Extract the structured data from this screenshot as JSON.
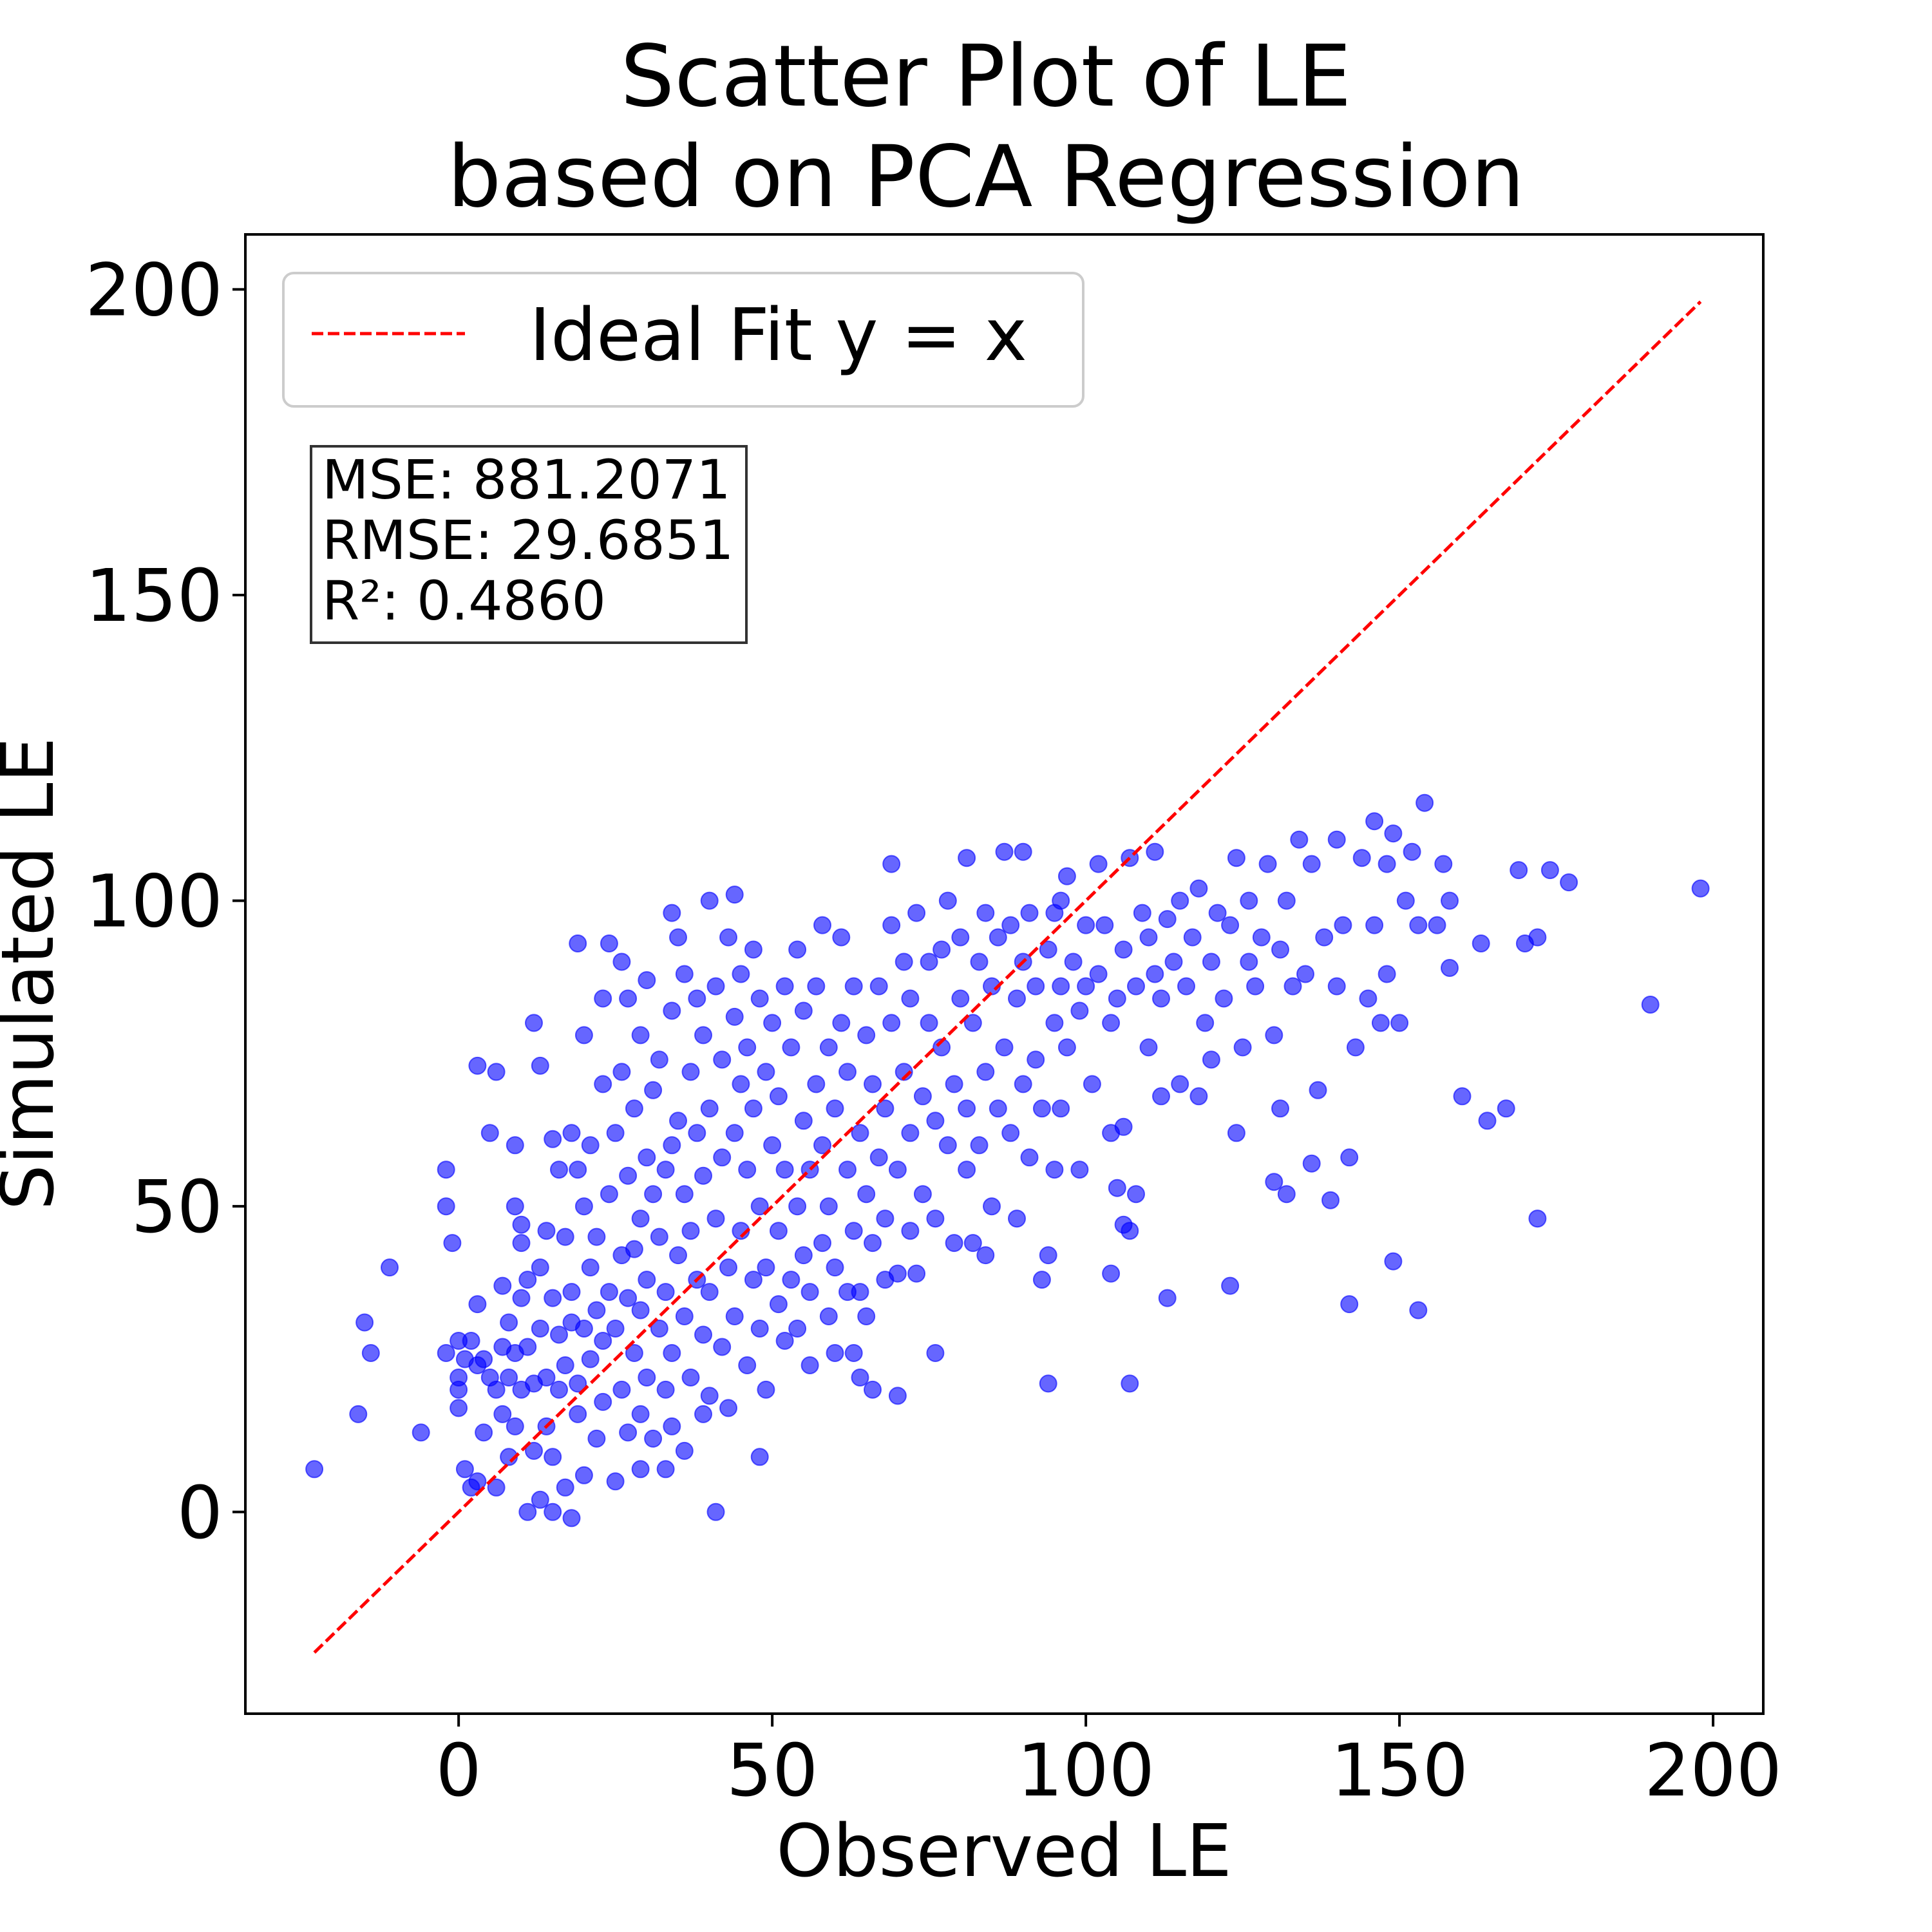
{
  "chart_data": {
    "type": "scatter",
    "title_lines": [
      "Scatter Plot of LE",
      "based on PCA Regression"
    ],
    "xlabel": "Observed LE",
    "ylabel": "Simulated LE",
    "xlim": [
      -34,
      208
    ],
    "ylim": [
      -33,
      209
    ],
    "xticks": [
      0,
      50,
      100,
      150,
      200
    ],
    "yticks": [
      0,
      50,
      100,
      150,
      200
    ],
    "xtick_labels": [
      "0",
      "50",
      "100",
      "150",
      "200"
    ],
    "ytick_labels": [
      "0",
      "50",
      "100",
      "150",
      "200"
    ],
    "grid": false,
    "legend": {
      "placement": "upper-left",
      "entries": [
        {
          "label": "Ideal Fit y = x",
          "style": "dashed",
          "color": "#ff0000"
        }
      ]
    },
    "ideal_line": {
      "x": [
        -23,
        198
      ],
      "y": [
        -23,
        198
      ],
      "color": "#ff0000"
    },
    "metrics_box": [
      "MSE: 881.2071",
      "RMSE: 29.6851",
      "R²: 0.4860"
    ],
    "point_color": "#0000ff",
    "points": [
      [
        -23,
        7
      ],
      [
        -16,
        16
      ],
      [
        -15,
        31
      ],
      [
        -14,
        26
      ],
      [
        -11,
        40
      ],
      [
        -6,
        13
      ],
      [
        -2,
        26
      ],
      [
        -2,
        50
      ],
      [
        -2,
        56
      ],
      [
        -1,
        44
      ],
      [
        0,
        22
      ],
      [
        0,
        28
      ],
      [
        0,
        17
      ],
      [
        0,
        20
      ],
      [
        1,
        7
      ],
      [
        1,
        25
      ],
      [
        2,
        4
      ],
      [
        2,
        28
      ],
      [
        3,
        5
      ],
      [
        3,
        24
      ],
      [
        3,
        34
      ],
      [
        3,
        73
      ],
      [
        4,
        25
      ],
      [
        4,
        13
      ],
      [
        5,
        22
      ],
      [
        5,
        62
      ],
      [
        6,
        4
      ],
      [
        6,
        20
      ],
      [
        6,
        72
      ],
      [
        7,
        16
      ],
      [
        7,
        27
      ],
      [
        7,
        37
      ],
      [
        8,
        9
      ],
      [
        8,
        22
      ],
      [
        8,
        31
      ],
      [
        9,
        50
      ],
      [
        9,
        60
      ],
      [
        9,
        14
      ],
      [
        9,
        26
      ],
      [
        10,
        44
      ],
      [
        10,
        47
      ],
      [
        10,
        20
      ],
      [
        10,
        35
      ],
      [
        11,
        0
      ],
      [
        11,
        27
      ],
      [
        11,
        38
      ],
      [
        12,
        10
      ],
      [
        12,
        21
      ],
      [
        12,
        80
      ],
      [
        13,
        2
      ],
      [
        13,
        73
      ],
      [
        13,
        30
      ],
      [
        13,
        40
      ],
      [
        14,
        14
      ],
      [
        14,
        22
      ],
      [
        14,
        46
      ],
      [
        15,
        0
      ],
      [
        15,
        61
      ],
      [
        15,
        9
      ],
      [
        15,
        35
      ],
      [
        16,
        56
      ],
      [
        16,
        20
      ],
      [
        16,
        29
      ],
      [
        17,
        4
      ],
      [
        17,
        24
      ],
      [
        17,
        45
      ],
      [
        18,
        -1
      ],
      [
        18,
        62
      ],
      [
        18,
        31
      ],
      [
        18,
        36
      ],
      [
        19,
        93
      ],
      [
        19,
        16
      ],
      [
        19,
        21
      ],
      [
        19,
        56
      ],
      [
        20,
        78
      ],
      [
        20,
        6
      ],
      [
        20,
        30
      ],
      [
        20,
        50
      ],
      [
        21,
        40
      ],
      [
        21,
        25
      ],
      [
        21,
        60
      ],
      [
        22,
        12
      ],
      [
        22,
        33
      ],
      [
        22,
        45
      ],
      [
        23,
        84
      ],
      [
        23,
        18
      ],
      [
        23,
        28
      ],
      [
        23,
        70
      ],
      [
        24,
        93
      ],
      [
        24,
        36
      ],
      [
        24,
        52
      ],
      [
        25,
        5
      ],
      [
        25,
        30
      ],
      [
        25,
        62
      ],
      [
        26,
        20
      ],
      [
        26,
        72
      ],
      [
        26,
        42
      ],
      [
        26,
        90
      ],
      [
        27,
        13
      ],
      [
        27,
        35
      ],
      [
        27,
        55
      ],
      [
        27,
        84
      ],
      [
        28,
        26
      ],
      [
        28,
        43
      ],
      [
        28,
        66
      ],
      [
        29,
        7
      ],
      [
        29,
        16
      ],
      [
        29,
        33
      ],
      [
        29,
        48
      ],
      [
        29,
        78
      ],
      [
        30,
        22
      ],
      [
        30,
        38
      ],
      [
        30,
        58
      ],
      [
        30,
        87
      ],
      [
        31,
        12
      ],
      [
        31,
        52
      ],
      [
        31,
        69
      ],
      [
        32,
        30
      ],
      [
        32,
        45
      ],
      [
        32,
        74
      ],
      [
        33,
        7
      ],
      [
        33,
        20
      ],
      [
        33,
        36
      ],
      [
        33,
        56
      ],
      [
        34,
        98
      ],
      [
        34,
        14
      ],
      [
        34,
        26
      ],
      [
        34,
        60
      ],
      [
        34,
        82
      ],
      [
        35,
        42
      ],
      [
        35,
        64
      ],
      [
        35,
        94
      ],
      [
        36,
        10
      ],
      [
        36,
        32
      ],
      [
        36,
        52
      ],
      [
        36,
        88
      ],
      [
        37,
        22
      ],
      [
        37,
        46
      ],
      [
        37,
        72
      ],
      [
        38,
        38
      ],
      [
        38,
        62
      ],
      [
        38,
        84
      ],
      [
        39,
        16
      ],
      [
        39,
        29
      ],
      [
        39,
        55
      ],
      [
        39,
        78
      ],
      [
        40,
        100
      ],
      [
        40,
        19
      ],
      [
        40,
        36
      ],
      [
        40,
        66
      ],
      [
        41,
        0
      ],
      [
        41,
        48
      ],
      [
        41,
        86
      ],
      [
        42,
        27
      ],
      [
        42,
        58
      ],
      [
        42,
        74
      ],
      [
        43,
        17
      ],
      [
        43,
        40
      ],
      [
        43,
        94
      ],
      [
        44,
        101
      ],
      [
        44,
        32
      ],
      [
        44,
        62
      ],
      [
        44,
        81
      ],
      [
        45,
        46
      ],
      [
        45,
        70
      ],
      [
        45,
        88
      ],
      [
        46,
        24
      ],
      [
        46,
        56
      ],
      [
        46,
        76
      ],
      [
        47,
        38
      ],
      [
        47,
        66
      ],
      [
        47,
        92
      ],
      [
        48,
        9
      ],
      [
        48,
        30
      ],
      [
        48,
        50
      ],
      [
        48,
        84
      ],
      [
        49,
        20
      ],
      [
        49,
        40
      ],
      [
        49,
        72
      ],
      [
        50,
        60
      ],
      [
        50,
        80
      ],
      [
        51,
        34
      ],
      [
        51,
        46
      ],
      [
        51,
        68
      ],
      [
        52,
        28
      ],
      [
        52,
        56
      ],
      [
        52,
        86
      ],
      [
        53,
        38
      ],
      [
        53,
        76
      ],
      [
        54,
        30
      ],
      [
        54,
        50
      ],
      [
        54,
        92
      ],
      [
        55,
        42
      ],
      [
        55,
        64
      ],
      [
        55,
        82
      ],
      [
        56,
        24
      ],
      [
        56,
        36
      ],
      [
        56,
        56
      ],
      [
        57,
        70
      ],
      [
        57,
        86
      ],
      [
        58,
        44
      ],
      [
        58,
        60
      ],
      [
        58,
        96
      ],
      [
        59,
        32
      ],
      [
        59,
        50
      ],
      [
        59,
        76
      ],
      [
        60,
        26
      ],
      [
        60,
        40
      ],
      [
        60,
        66
      ],
      [
        61,
        80
      ],
      [
        61,
        94
      ],
      [
        62,
        36
      ],
      [
        62,
        56
      ],
      [
        62,
        72
      ],
      [
        63,
        26
      ],
      [
        63,
        46
      ],
      [
        63,
        86
      ],
      [
        64,
        22
      ],
      [
        64,
        36
      ],
      [
        64,
        62
      ],
      [
        65,
        32
      ],
      [
        65,
        52
      ],
      [
        65,
        78
      ],
      [
        66,
        20
      ],
      [
        66,
        44
      ],
      [
        66,
        70
      ],
      [
        67,
        58
      ],
      [
        67,
        86
      ],
      [
        68,
        38
      ],
      [
        68,
        48
      ],
      [
        68,
        66
      ],
      [
        69,
        106
      ],
      [
        69,
        80
      ],
      [
        69,
        96
      ],
      [
        70,
        19
      ],
      [
        70,
        39
      ],
      [
        70,
        56
      ],
      [
        71,
        72
      ],
      [
        71,
        90
      ],
      [
        72,
        46
      ],
      [
        72,
        62
      ],
      [
        72,
        84
      ],
      [
        73,
        39
      ],
      [
        73,
        98
      ],
      [
        74,
        52
      ],
      [
        74,
        68
      ],
      [
        75,
        80
      ],
      [
        75,
        90
      ],
      [
        76,
        26
      ],
      [
        76,
        48
      ],
      [
        76,
        64
      ],
      [
        77,
        76
      ],
      [
        77,
        92
      ],
      [
        78,
        60
      ],
      [
        78,
        100
      ],
      [
        79,
        44
      ],
      [
        79,
        70
      ],
      [
        80,
        84
      ],
      [
        80,
        94
      ],
      [
        81,
        107
      ],
      [
        81,
        56
      ],
      [
        81,
        66
      ],
      [
        82,
        44
      ],
      [
        82,
        80
      ],
      [
        83,
        90
      ],
      [
        83,
        60
      ],
      [
        84,
        42
      ],
      [
        84,
        72
      ],
      [
        84,
        98
      ],
      [
        85,
        50
      ],
      [
        85,
        86
      ],
      [
        86,
        66
      ],
      [
        86,
        94
      ],
      [
        87,
        108
      ],
      [
        87,
        76
      ],
      [
        88,
        62
      ],
      [
        88,
        96
      ],
      [
        89,
        48
      ],
      [
        89,
        84
      ],
      [
        90,
        108
      ],
      [
        90,
        70
      ],
      [
        90,
        90
      ],
      [
        91,
        58
      ],
      [
        91,
        98
      ],
      [
        92,
        74
      ],
      [
        92,
        86
      ],
      [
        93,
        38
      ],
      [
        93,
        66
      ],
      [
        94,
        21
      ],
      [
        94,
        42
      ],
      [
        94,
        92
      ],
      [
        95,
        56
      ],
      [
        95,
        80
      ],
      [
        95,
        98
      ],
      [
        96,
        100
      ],
      [
        96,
        66
      ],
      [
        96,
        86
      ],
      [
        97,
        104
      ],
      [
        97,
        76
      ],
      [
        98,
        90
      ],
      [
        99,
        56
      ],
      [
        99,
        82
      ],
      [
        100,
        96
      ],
      [
        100,
        86
      ],
      [
        101,
        70
      ],
      [
        102,
        106
      ],
      [
        102,
        88
      ],
      [
        103,
        96
      ],
      [
        104,
        39
      ],
      [
        104,
        62
      ],
      [
        104,
        80
      ],
      [
        105,
        53
      ],
      [
        105,
        84
      ],
      [
        106,
        47
      ],
      [
        106,
        63
      ],
      [
        106,
        92
      ],
      [
        107,
        21
      ],
      [
        107,
        46
      ],
      [
        107,
        107
      ],
      [
        108,
        52
      ],
      [
        108,
        86
      ],
      [
        109,
        98
      ],
      [
        110,
        76
      ],
      [
        110,
        94
      ],
      [
        111,
        108
      ],
      [
        111,
        88
      ],
      [
        112,
        68
      ],
      [
        112,
        84
      ],
      [
        113,
        35
      ],
      [
        113,
        97
      ],
      [
        114,
        90
      ],
      [
        115,
        70
      ],
      [
        115,
        100
      ],
      [
        116,
        86
      ],
      [
        117,
        94
      ],
      [
        118,
        68
      ],
      [
        118,
        102
      ],
      [
        119,
        80
      ],
      [
        120,
        90
      ],
      [
        120,
        74
      ],
      [
        121,
        98
      ],
      [
        122,
        84
      ],
      [
        123,
        37
      ],
      [
        123,
        96
      ],
      [
        124,
        62
      ],
      [
        124,
        107
      ],
      [
        125,
        76
      ],
      [
        126,
        90
      ],
      [
        126,
        100
      ],
      [
        127,
        86
      ],
      [
        128,
        94
      ],
      [
        129,
        106
      ],
      [
        130,
        54
      ],
      [
        130,
        78
      ],
      [
        131,
        66
      ],
      [
        131,
        92
      ],
      [
        132,
        52
      ],
      [
        132,
        100
      ],
      [
        133,
        86
      ],
      [
        134,
        110
      ],
      [
        135,
        88
      ],
      [
        136,
        106
      ],
      [
        136,
        57
      ],
      [
        137,
        69
      ],
      [
        138,
        94
      ],
      [
        139,
        51
      ],
      [
        140,
        110
      ],
      [
        140,
        86
      ],
      [
        141,
        96
      ],
      [
        142,
        34
      ],
      [
        142,
        58
      ],
      [
        143,
        76
      ],
      [
        144,
        107
      ],
      [
        145,
        84
      ],
      [
        146,
        96
      ],
      [
        146,
        113
      ],
      [
        147,
        80
      ],
      [
        148,
        106
      ],
      [
        148,
        88
      ],
      [
        149,
        41
      ],
      [
        149,
        111
      ],
      [
        150,
        80
      ],
      [
        151,
        100
      ],
      [
        152,
        108
      ],
      [
        153,
        33
      ],
      [
        153,
        96
      ],
      [
        154,
        116
      ],
      [
        156,
        96
      ],
      [
        157,
        106
      ],
      [
        158,
        89
      ],
      [
        158,
        100
      ],
      [
        160,
        68
      ],
      [
        163,
        93
      ],
      [
        164,
        64
      ],
      [
        167,
        66
      ],
      [
        169,
        105
      ],
      [
        170,
        93
      ],
      [
        172,
        48
      ],
      [
        172,
        94
      ],
      [
        174,
        105
      ],
      [
        177,
        103
      ],
      [
        190,
        83
      ],
      [
        198,
        102
      ]
    ]
  }
}
